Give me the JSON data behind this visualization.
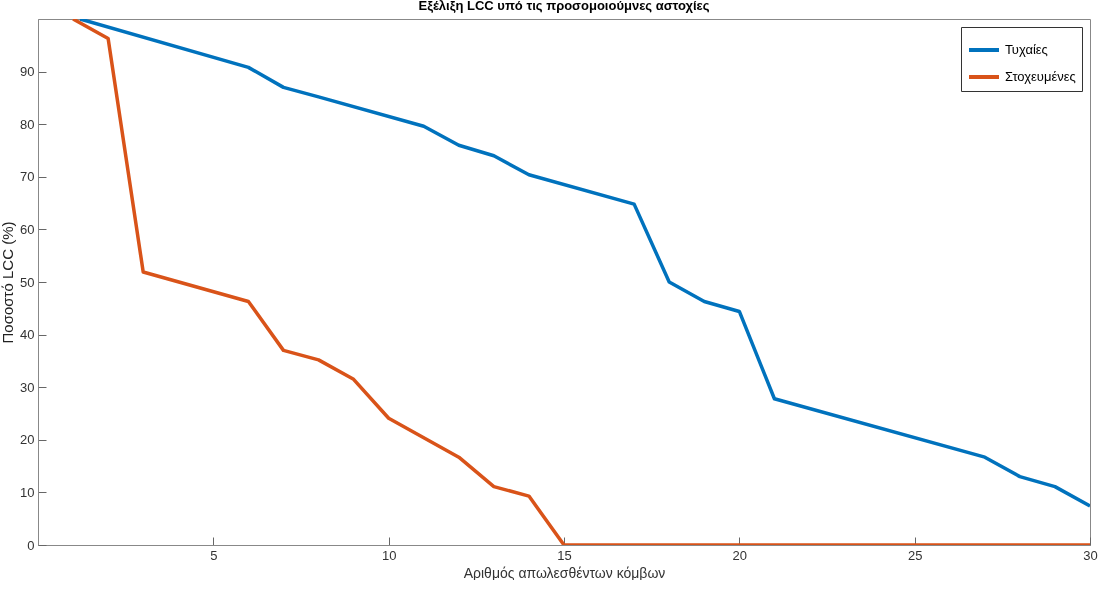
{
  "chart_data": {
    "type": "line",
    "title": "Εξέλιξη LCC υπό τις προσομοιούμνες αστοχίες",
    "xlabel": "Αριθμός απωλεσθέντων κόμβων",
    "ylabel": "Ποσοστό  LCC (%)",
    "xlim": [
      0,
      30
    ],
    "xticks": [
      5,
      10,
      15,
      20,
      25,
      30
    ],
    "ylim": [
      0,
      100
    ],
    "yticks": [
      0,
      10,
      20,
      30,
      40,
      50,
      60,
      70,
      80,
      90
    ],
    "grid": false,
    "legend": "top right",
    "marker": "none",
    "line_style": "solid",
    "series": [
      {
        "name": "Τυχαίες",
        "color": "#0072bd",
        "x": [
          1.2,
          6,
          7,
          8,
          11,
          12,
          13,
          14,
          17,
          18,
          19,
          20,
          21,
          27,
          28,
          29,
          30
        ],
        "values": [
          100,
          90.8,
          87,
          85.2,
          79.6,
          76,
          74,
          70.4,
          64.8,
          50,
          46.3,
          44.4,
          27.8,
          16.7,
          13,
          11.1,
          7.4
        ]
      },
      {
        "name": "Στοχευμένες",
        "color": "#d95319",
        "x": [
          1,
          2,
          3,
          6,
          7,
          8,
          9,
          10,
          12,
          13,
          14,
          15,
          30
        ],
        "values": [
          100,
          96.3,
          51.9,
          46.3,
          37,
          35.2,
          31.5,
          24.1,
          16.7,
          11.1,
          9.3,
          0,
          0
        ]
      }
    ]
  }
}
